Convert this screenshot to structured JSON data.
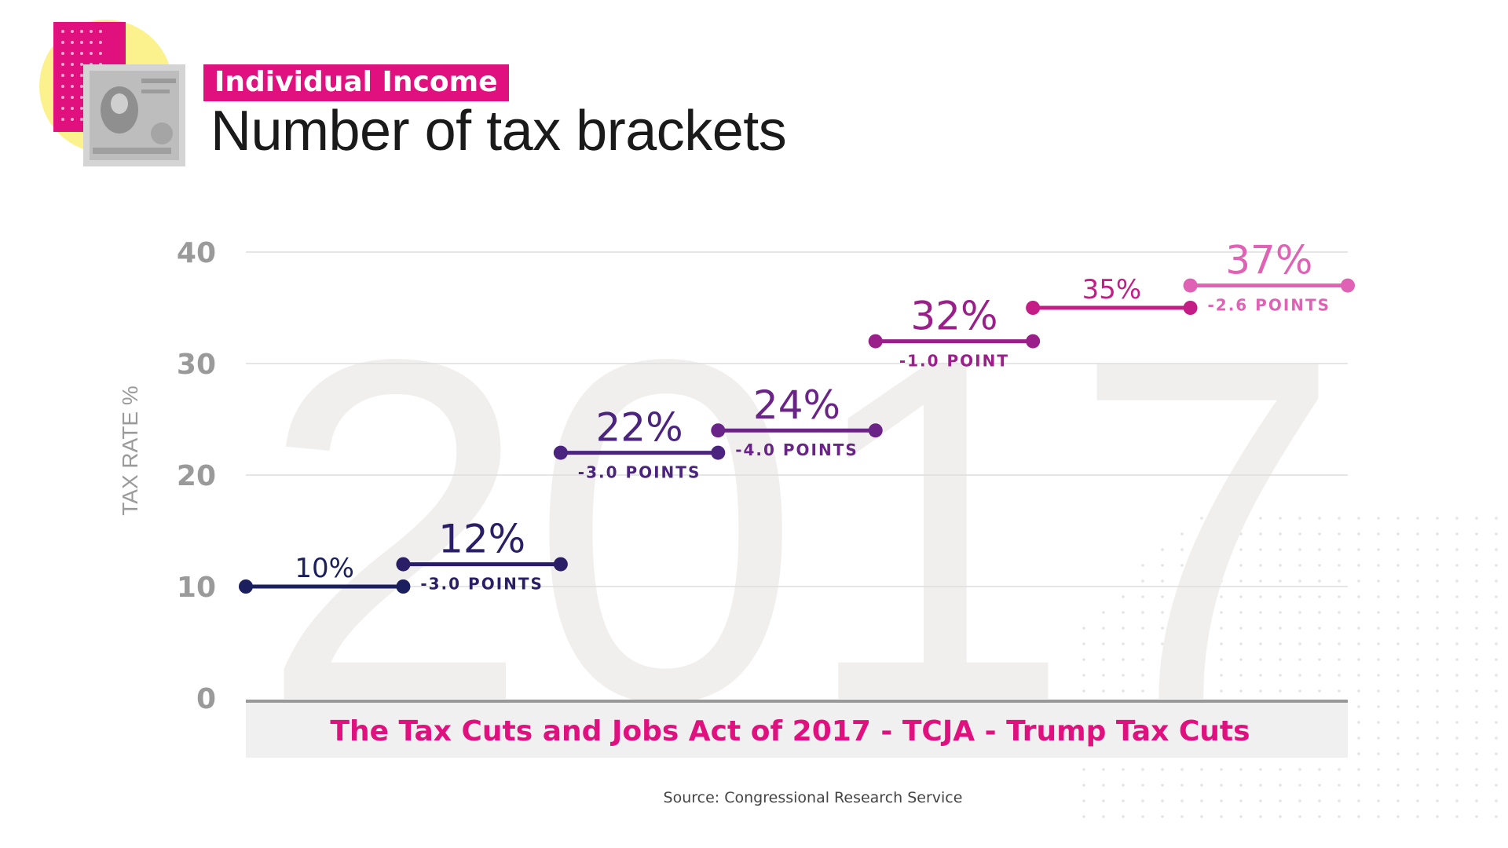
{
  "header": {
    "tag": "Individual Income",
    "title": "Number of tax brackets"
  },
  "footer": {
    "source": "Source: Congressional Research Service"
  },
  "colors": {
    "accent": "#e0117f",
    "logo_circle": "#fbf28e",
    "series": [
      "#1b1f5e",
      "#2a1f66",
      "#4b2480",
      "#6a2386",
      "#9a1f89",
      "#c41e86",
      "#df62b5"
    ]
  },
  "chart_data": {
    "type": "line",
    "ylabel": "TAX RATE %",
    "ylim": [
      0,
      40
    ],
    "yticks": [
      0,
      10,
      20,
      30,
      40
    ],
    "watermark": "2017",
    "band_label": "The Tax Cuts and Jobs Act of 2017 - TCJA  - Trump Tax Cuts",
    "grid": true,
    "series": [
      {
        "rate": 10,
        "label": "10%",
        "change": ""
      },
      {
        "rate": 12,
        "label": "12%",
        "change": "-3.0 POINTS"
      },
      {
        "rate": 22,
        "label": "22%",
        "change": "-3.0 POINTS"
      },
      {
        "rate": 24,
        "label": "24%",
        "change": "-4.0 POINTS"
      },
      {
        "rate": 32,
        "label": "32%",
        "change": "-1.0 POINT"
      },
      {
        "rate": 35,
        "label": "35%",
        "change": ""
      },
      {
        "rate": 37,
        "label": "37%",
        "change": "-2.6 POINTS"
      }
    ]
  }
}
